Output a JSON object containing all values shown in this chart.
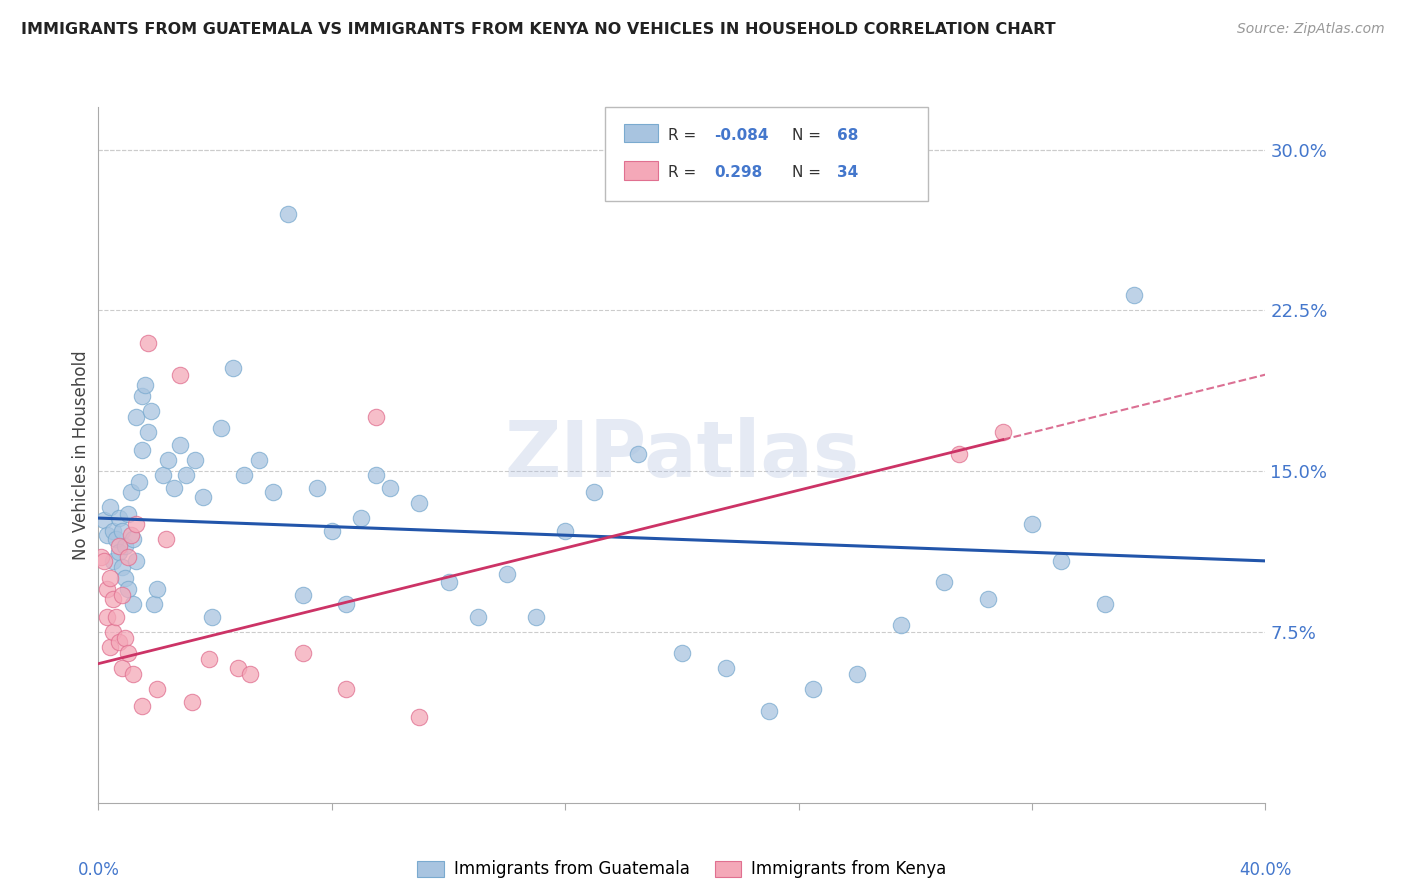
{
  "title": "IMMIGRANTS FROM GUATEMALA VS IMMIGRANTS FROM KENYA NO VEHICLES IN HOUSEHOLD CORRELATION CHART",
  "source": "Source: ZipAtlas.com",
  "ylabel": "No Vehicles in Household",
  "ytick_values": [
    0.075,
    0.15,
    0.225,
    0.3
  ],
  "xlim": [
    0.0,
    0.4
  ],
  "ylim": [
    -0.005,
    0.32
  ],
  "watermark": "ZIPatlas",
  "blue_color": "#A8C4E0",
  "pink_color": "#F4A8B8",
  "blue_edge_color": "#7AAACF",
  "pink_edge_color": "#E07090",
  "line_blue_color": "#2255AA",
  "line_pink_color": "#CC3366",
  "axis_label_color": "#4477CC",
  "grid_color": "#CCCCCC",
  "blue_line_start_y": 0.128,
  "blue_line_end_y": 0.108,
  "pink_line_start_y": 0.06,
  "pink_line_end_y": 0.195,
  "guatemala_x": [
    0.002,
    0.003,
    0.004,
    0.005,
    0.005,
    0.006,
    0.007,
    0.007,
    0.008,
    0.008,
    0.009,
    0.009,
    0.01,
    0.01,
    0.011,
    0.012,
    0.012,
    0.013,
    0.013,
    0.014,
    0.015,
    0.015,
    0.016,
    0.017,
    0.018,
    0.019,
    0.02,
    0.022,
    0.024,
    0.026,
    0.028,
    0.03,
    0.033,
    0.036,
    0.039,
    0.042,
    0.046,
    0.05,
    0.055,
    0.06,
    0.065,
    0.07,
    0.075,
    0.08,
    0.085,
    0.09,
    0.095,
    0.1,
    0.11,
    0.12,
    0.13,
    0.14,
    0.15,
    0.16,
    0.17,
    0.185,
    0.2,
    0.215,
    0.23,
    0.245,
    0.26,
    0.275,
    0.29,
    0.305,
    0.32,
    0.33,
    0.345,
    0.355
  ],
  "guatemala_y": [
    0.127,
    0.12,
    0.133,
    0.122,
    0.108,
    0.118,
    0.128,
    0.112,
    0.105,
    0.122,
    0.115,
    0.1,
    0.13,
    0.095,
    0.14,
    0.118,
    0.088,
    0.108,
    0.175,
    0.145,
    0.185,
    0.16,
    0.19,
    0.168,
    0.178,
    0.088,
    0.095,
    0.148,
    0.155,
    0.142,
    0.162,
    0.148,
    0.155,
    0.138,
    0.082,
    0.17,
    0.198,
    0.148,
    0.155,
    0.14,
    0.27,
    0.092,
    0.142,
    0.122,
    0.088,
    0.128,
    0.148,
    0.142,
    0.135,
    0.098,
    0.082,
    0.102,
    0.082,
    0.122,
    0.14,
    0.158,
    0.065,
    0.058,
    0.038,
    0.048,
    0.055,
    0.078,
    0.098,
    0.09,
    0.125,
    0.108,
    0.088,
    0.232
  ],
  "kenya_x": [
    0.001,
    0.002,
    0.003,
    0.003,
    0.004,
    0.004,
    0.005,
    0.005,
    0.006,
    0.007,
    0.007,
    0.008,
    0.008,
    0.009,
    0.01,
    0.01,
    0.011,
    0.012,
    0.013,
    0.015,
    0.017,
    0.02,
    0.023,
    0.028,
    0.032,
    0.038,
    0.048,
    0.052,
    0.07,
    0.085,
    0.095,
    0.11,
    0.295,
    0.31
  ],
  "kenya_y": [
    0.11,
    0.108,
    0.095,
    0.082,
    0.1,
    0.068,
    0.09,
    0.075,
    0.082,
    0.07,
    0.115,
    0.058,
    0.092,
    0.072,
    0.065,
    0.11,
    0.12,
    0.055,
    0.125,
    0.04,
    0.21,
    0.048,
    0.118,
    0.195,
    0.042,
    0.062,
    0.058,
    0.055,
    0.065,
    0.048,
    0.175,
    0.035,
    0.158,
    0.168
  ]
}
